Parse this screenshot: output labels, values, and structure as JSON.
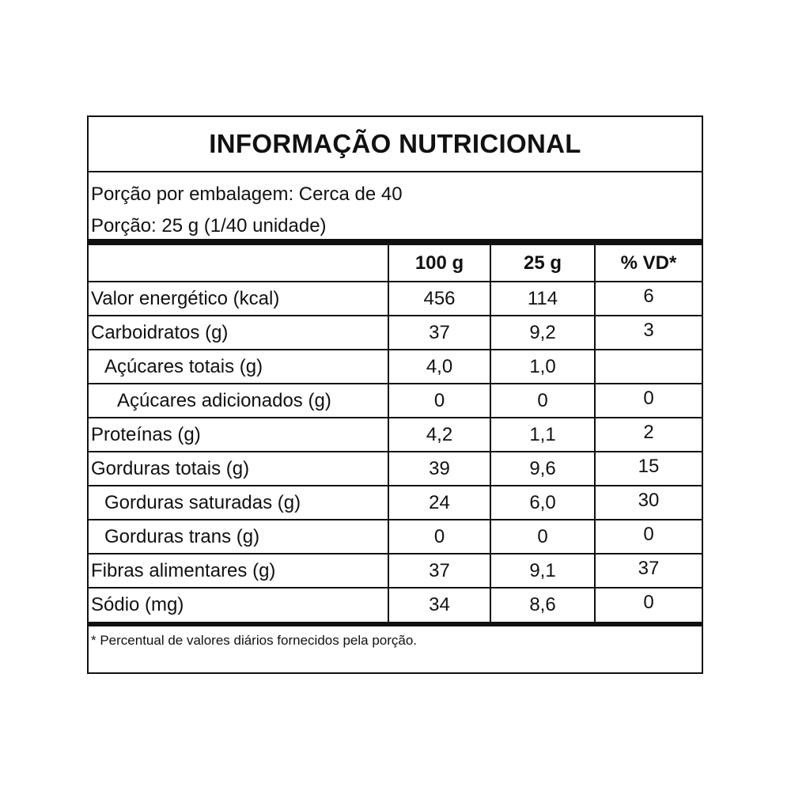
{
  "title": "INFORMAÇÃO NUTRICIONAL",
  "portions_per_package": "Porção por embalagem: Cerca de 40",
  "portion_size": "Porção: 25 g (1/40 unidade)",
  "columns": [
    "",
    "100 g",
    "25 g",
    "% VD*"
  ],
  "rows": [
    {
      "name": "Valor energético (kcal)",
      "per100": "456",
      "per25": "114",
      "vd": "6",
      "indent": 0
    },
    {
      "name": "Carboidratos (g)",
      "per100": "37",
      "per25": "9,2",
      "vd": "3",
      "indent": 0
    },
    {
      "name": "Açúcares totais (g)",
      "per100": "4,0",
      "per25": "1,0",
      "vd": "",
      "indent": 1
    },
    {
      "name": "Açúcares adicionados (g)",
      "per100": "0",
      "per25": "0",
      "vd": "0",
      "indent": 2
    },
    {
      "name": "Proteínas (g)",
      "per100": "4,2",
      "per25": "1,1",
      "vd": "2",
      "indent": 0
    },
    {
      "name": "Gorduras totais (g)",
      "per100": "39",
      "per25": "9,6",
      "vd": "15",
      "indent": 0
    },
    {
      "name": "Gorduras saturadas (g)",
      "per100": "24",
      "per25": "6,0",
      "vd": "30",
      "indent": 1
    },
    {
      "name": "Gorduras trans (g)",
      "per100": "0",
      "per25": "0",
      "vd": "0",
      "indent": 1
    },
    {
      "name": "Fibras alimentares (g)",
      "per100": "37",
      "per25": "9,1",
      "vd": "37",
      "indent": 0
    },
    {
      "name": "Sódio (mg)",
      "per100": "34",
      "per25": "8,6",
      "vd": "0",
      "indent": 0
    }
  ],
  "footnote": "* Percentual de valores diários fornecidos pela porção."
}
